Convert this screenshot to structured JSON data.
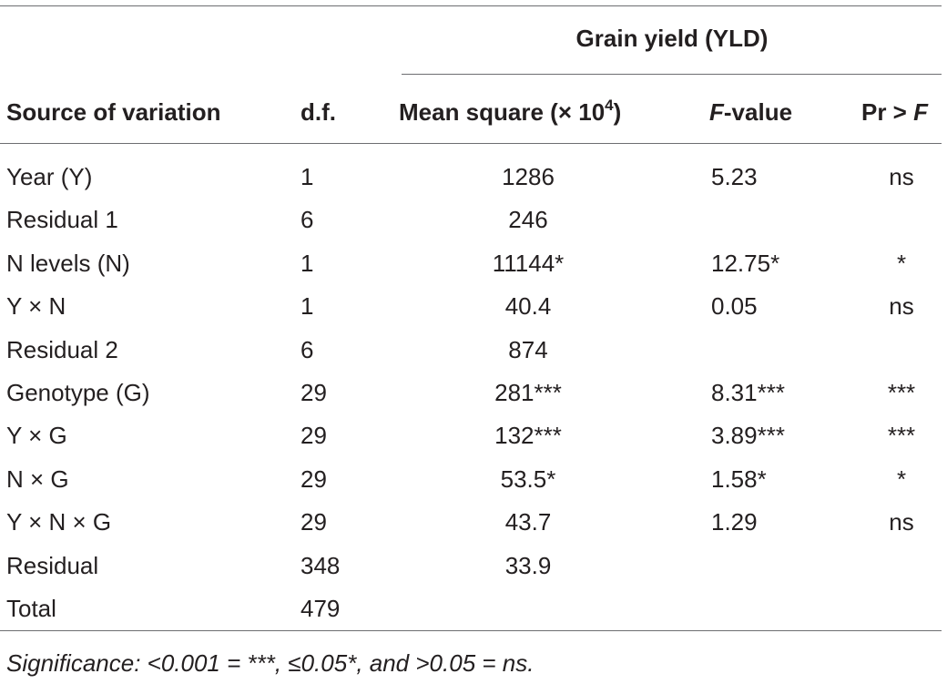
{
  "table": {
    "group_header": "Grain yield (YLD)",
    "headers": {
      "source": "Source of variation",
      "df": "d.f.",
      "mean_square": "Mean square (× 10",
      "mean_square_exp": "4",
      "mean_square_close": ")",
      "f_value_italic": "F",
      "f_value_rest": "-value",
      "pr_prefix": "Pr > ",
      "pr_italic": "F"
    },
    "rows": [
      {
        "source": "Year (Y)",
        "df": "1",
        "mean_square": "1286",
        "f_value": "5.23",
        "pr": "ns"
      },
      {
        "source": "Residual 1",
        "df": "6",
        "mean_square": "246",
        "f_value": "",
        "pr": ""
      },
      {
        "source": "N levels (N)",
        "df": "1",
        "mean_square": "11144*",
        "f_value": "12.75*",
        "pr": "*"
      },
      {
        "source": "Y × N",
        "df": "1",
        "mean_square": "40.4",
        "f_value": "0.05",
        "pr": "ns"
      },
      {
        "source": "Residual 2",
        "df": "6",
        "mean_square": "874",
        "f_value": "",
        "pr": ""
      },
      {
        "source": "Genotype (G)",
        "df": "29",
        "mean_square": "281***",
        "f_value": "8.31***",
        "pr": "***"
      },
      {
        "source": "Y × G",
        "df": "29",
        "mean_square": "132***",
        "f_value": "3.89***",
        "pr": "***"
      },
      {
        "source": "N × G",
        "df": "29",
        "mean_square": "53.5*",
        "f_value": "1.58*",
        "pr": "*"
      },
      {
        "source": "Y × N × G",
        "df": "29",
        "mean_square": "43.7",
        "f_value": "1.29",
        "pr": "ns"
      },
      {
        "source": "Residual",
        "df": "348",
        "mean_square": "33.9",
        "f_value": "",
        "pr": ""
      },
      {
        "source": "Total",
        "df": "479",
        "mean_square": "",
        "f_value": "",
        "pr": ""
      }
    ],
    "footnote": "Significance: <0.001 = ***, ≤0.05*, and >0.05 = ns."
  }
}
